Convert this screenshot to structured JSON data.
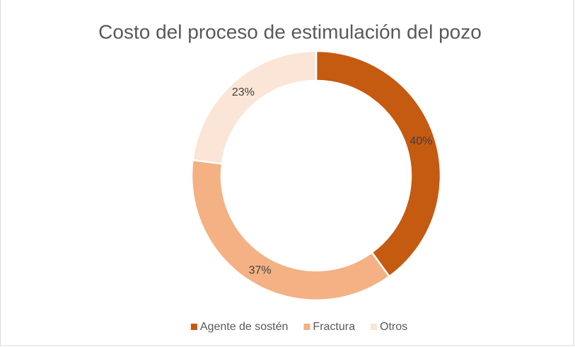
{
  "chart_data": {
    "type": "donut",
    "title": "Costo del proceso de estimulación del pozo",
    "categories": [
      "Agente de sostén",
      "Fractura",
      "Otros"
    ],
    "values": [
      40,
      37,
      23
    ],
    "value_labels": [
      "40%",
      "37%",
      "23%"
    ],
    "colors": [
      "#c55a11",
      "#f4b183",
      "#fbe5d6"
    ],
    "legend": "bottom"
  }
}
